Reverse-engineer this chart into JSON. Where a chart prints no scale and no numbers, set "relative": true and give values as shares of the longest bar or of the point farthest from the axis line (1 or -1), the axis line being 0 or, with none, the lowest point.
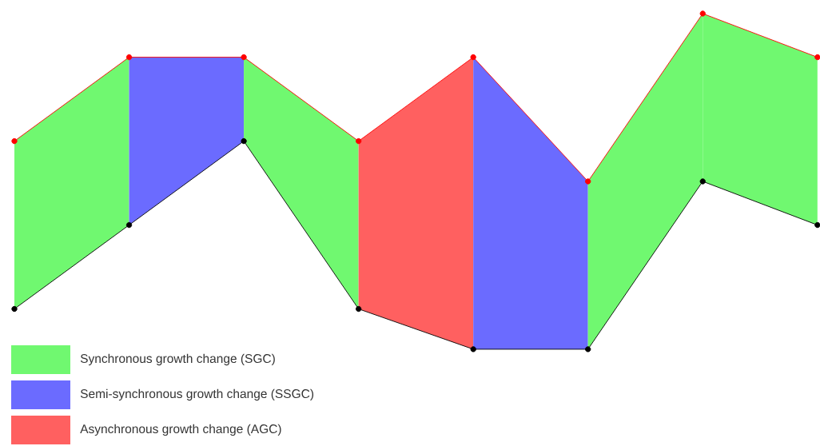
{
  "chart_data": {
    "type": "line",
    "relative": true,
    "marker": "circle",
    "line_style": "solid",
    "categories": [
      null,
      null,
      null,
      null,
      null,
      null,
      null,
      null
    ],
    "series": [
      {
        "color": "#ff0000",
        "values": [
          0.62,
          0.87,
          0.87,
          0.62,
          0.87,
          0.5,
          1,
          0.87
        ]
      },
      {
        "color": "#000000",
        "values": [
          0.12,
          0.37,
          0.62,
          0.12,
          0,
          0,
          0.5,
          0.37
        ]
      }
    ],
    "annotations": [
      "Synchronous growth change (SGC)",
      "Semi-synchronous growth change (SSGC)",
      "Asynchronous growth change (AGC)"
    ]
  }
}
